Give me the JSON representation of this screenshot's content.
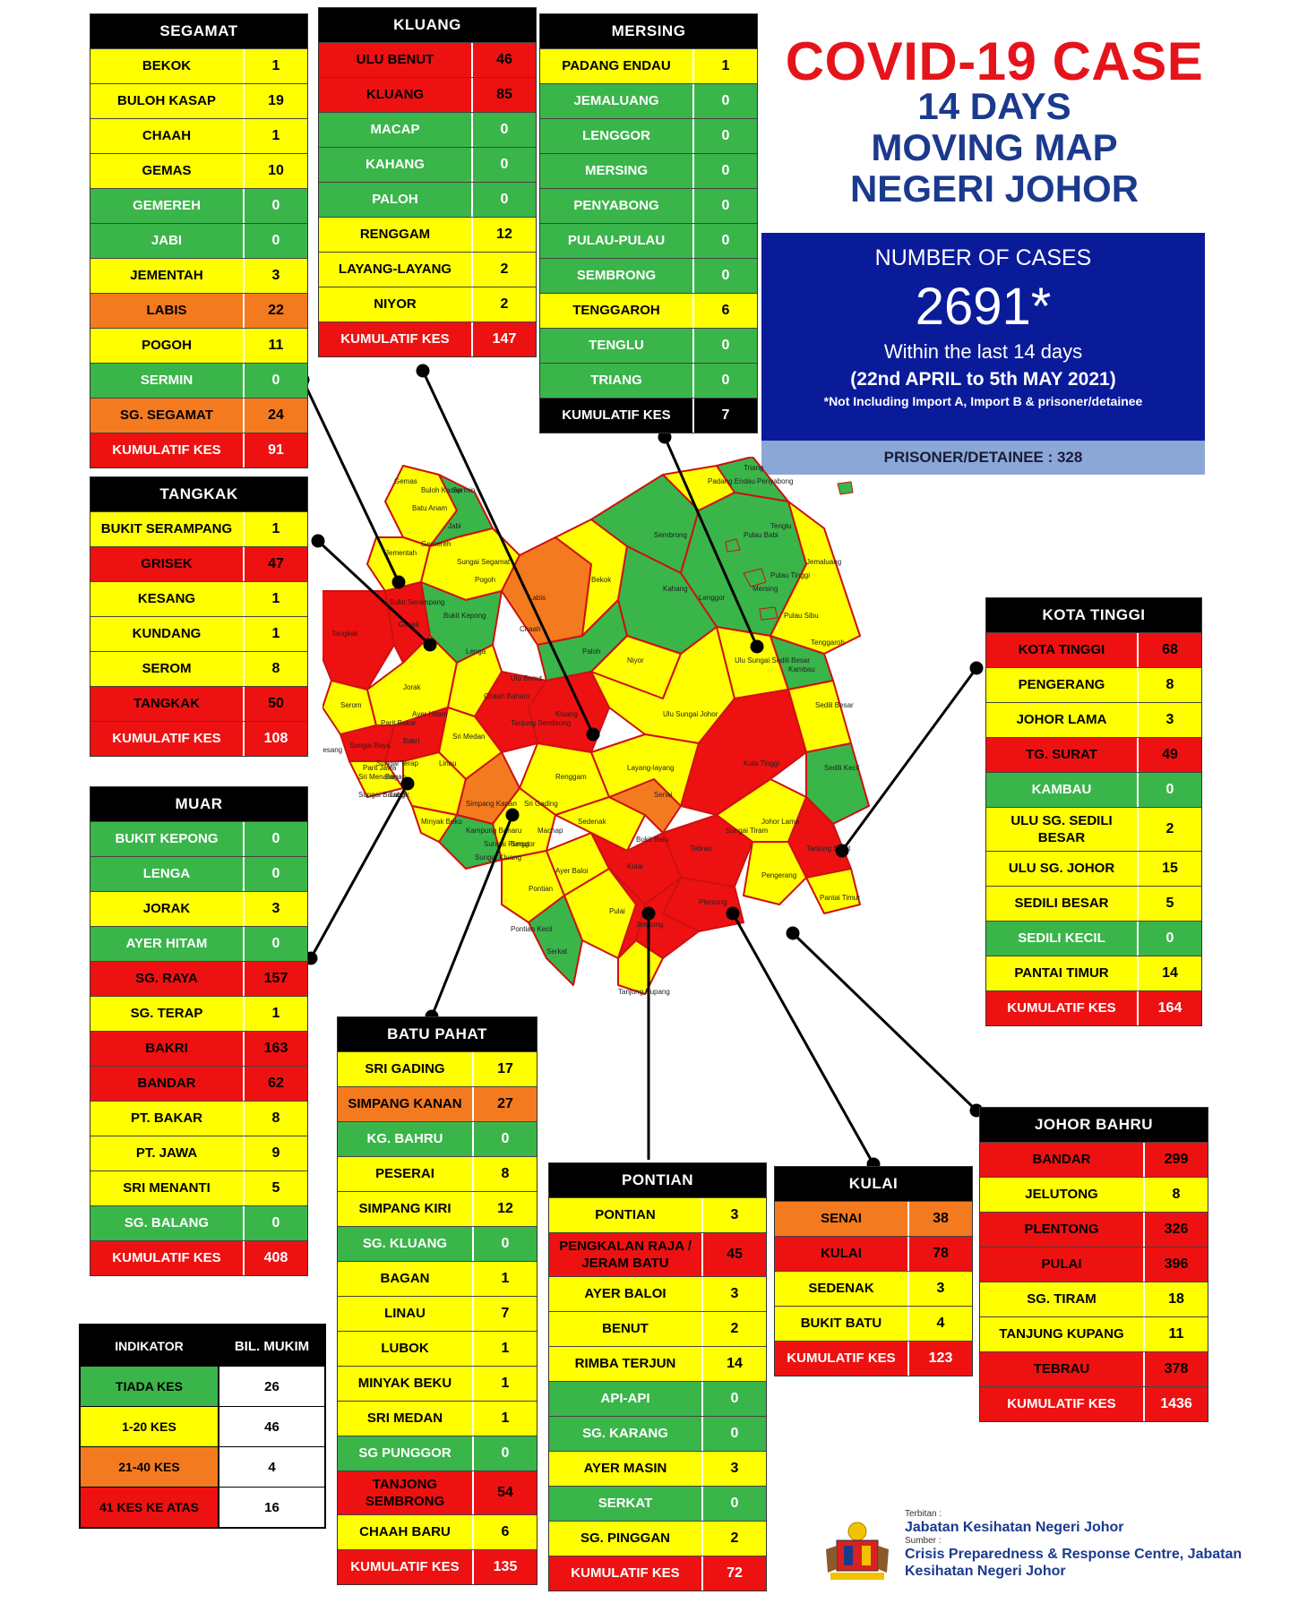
{
  "title": {
    "main": "COVID-19 CASE",
    "sub1": "14 DAYS",
    "sub2": "MOVING MAP",
    "sub3": "NEGERI JOHOR"
  },
  "summary": {
    "label": "NUMBER OF CASES",
    "count": "2691*",
    "within": "Within the last 14 days",
    "range": "(22nd APRIL to 5th MAY 2021)",
    "note": "*Not Including Import A, Import B & prisoner/detainee",
    "prisoner": "PRISONER/DETAINEE : 328"
  },
  "colors": {
    "green": "#3ab54a",
    "yellow": "#ffff00",
    "orange": "#f47a20",
    "red": "#ee1111"
  },
  "districts": {
    "segamat": {
      "name": "SEGAMAT",
      "rows": [
        {
          "name": "BEKOK",
          "value": "1",
          "level": "yellow"
        },
        {
          "name": "BULOH KASAP",
          "value": "19",
          "level": "yellow"
        },
        {
          "name": "CHAAH",
          "value": "1",
          "level": "yellow"
        },
        {
          "name": "GEMAS",
          "value": "10",
          "level": "yellow"
        },
        {
          "name": "GEMEREH",
          "value": "0",
          "level": "green"
        },
        {
          "name": "JABI",
          "value": "0",
          "level": "green"
        },
        {
          "name": "JEMENTAH",
          "value": "3",
          "level": "yellow"
        },
        {
          "name": "LABIS",
          "value": "22",
          "level": "orange"
        },
        {
          "name": "POGOH",
          "value": "11",
          "level": "yellow"
        },
        {
          "name": "SERMIN",
          "value": "0",
          "level": "green"
        },
        {
          "name": "SG. SEGAMAT",
          "value": "24",
          "level": "orange"
        },
        {
          "name": "KUMULATIF KES",
          "value": "91",
          "level": "total"
        }
      ]
    },
    "kluang": {
      "name": "KLUANG",
      "rows": [
        {
          "name": "ULU BENUT",
          "value": "46",
          "level": "red"
        },
        {
          "name": "KLUANG",
          "value": "85",
          "level": "red"
        },
        {
          "name": "MACAP",
          "value": "0",
          "level": "green"
        },
        {
          "name": "KAHANG",
          "value": "0",
          "level": "green"
        },
        {
          "name": "PALOH",
          "value": "0",
          "level": "green"
        },
        {
          "name": "RENGGAM",
          "value": "12",
          "level": "yellow"
        },
        {
          "name": "LAYANG-LAYANG",
          "value": "2",
          "level": "yellow"
        },
        {
          "name": "NIYOR",
          "value": "2",
          "level": "yellow"
        },
        {
          "name": "KUMULATIF KES",
          "value": "147",
          "level": "total"
        }
      ]
    },
    "mersing": {
      "name": "MERSING",
      "rows": [
        {
          "name": "PADANG ENDAU",
          "value": "1",
          "level": "yellow"
        },
        {
          "name": "JEMALUANG",
          "value": "0",
          "level": "green"
        },
        {
          "name": "LENGGOR",
          "value": "0",
          "level": "green"
        },
        {
          "name": "MERSING",
          "value": "0",
          "level": "green"
        },
        {
          "name": "PENYABONG",
          "value": "0",
          "level": "green"
        },
        {
          "name": "PULAU-PULAU",
          "value": "0",
          "level": "green"
        },
        {
          "name": "SEMBRONG",
          "value": "0",
          "level": "green"
        },
        {
          "name": "TENGGAROH",
          "value": "6",
          "level": "yellow"
        },
        {
          "name": "TENGLU",
          "value": "0",
          "level": "green"
        },
        {
          "name": "TRIANG",
          "value": "0",
          "level": "green"
        },
        {
          "name": "KUMULATIF KES",
          "value": "7",
          "level": "totalblk"
        }
      ]
    },
    "tangkak": {
      "name": "TANGKAK",
      "rows": [
        {
          "name": "BUKIT SERAMPANG",
          "value": "1",
          "level": "yellow"
        },
        {
          "name": "GRISEK",
          "value": "47",
          "level": "red"
        },
        {
          "name": "KESANG",
          "value": "1",
          "level": "yellow"
        },
        {
          "name": "KUNDANG",
          "value": "1",
          "level": "yellow"
        },
        {
          "name": "SEROM",
          "value": "8",
          "level": "yellow"
        },
        {
          "name": "TANGKAK",
          "value": "50",
          "level": "red"
        },
        {
          "name": "KUMULATIF KES",
          "value": "108",
          "level": "total"
        }
      ]
    },
    "muar": {
      "name": "MUAR",
      "rows": [
        {
          "name": "BUKIT KEPONG",
          "value": "0",
          "level": "green"
        },
        {
          "name": "LENGA",
          "value": "0",
          "level": "green"
        },
        {
          "name": "JORAK",
          "value": "3",
          "level": "yellow"
        },
        {
          "name": "AYER HITAM",
          "value": "0",
          "level": "green"
        },
        {
          "name": "SG. RAYA",
          "value": "157",
          "level": "red"
        },
        {
          "name": "SG. TERAP",
          "value": "1",
          "level": "yellow"
        },
        {
          "name": "BAKRI",
          "value": "163",
          "level": "red"
        },
        {
          "name": "BANDAR",
          "value": "62",
          "level": "red"
        },
        {
          "name": "PT. BAKAR",
          "value": "8",
          "level": "yellow"
        },
        {
          "name": "PT. JAWA",
          "value": "9",
          "level": "yellow"
        },
        {
          "name": "SRI MENANTI",
          "value": "5",
          "level": "yellow"
        },
        {
          "name": "SG. BALANG",
          "value": "0",
          "level": "green"
        },
        {
          "name": "KUMULATIF KES",
          "value": "408",
          "level": "total"
        }
      ]
    },
    "batu_pahat": {
      "name": "BATU PAHAT",
      "rows": [
        {
          "name": "SRI GADING",
          "value": "17",
          "level": "yellow"
        },
        {
          "name": "SIMPANG KANAN",
          "value": "27",
          "level": "orange"
        },
        {
          "name": "KG. BAHRU",
          "value": "0",
          "level": "green"
        },
        {
          "name": "PESERAI",
          "value": "8",
          "level": "yellow"
        },
        {
          "name": "SIMPANG KIRI",
          "value": "12",
          "level": "yellow"
        },
        {
          "name": "SG. KLUANG",
          "value": "0",
          "level": "green"
        },
        {
          "name": "BAGAN",
          "value": "1",
          "level": "yellow"
        },
        {
          "name": "LINAU",
          "value": "7",
          "level": "yellow"
        },
        {
          "name": "LUBOK",
          "value": "1",
          "level": "yellow"
        },
        {
          "name": "MINYAK BEKU",
          "value": "1",
          "level": "yellow"
        },
        {
          "name": "SRI MEDAN",
          "value": "1",
          "level": "yellow"
        },
        {
          "name": "SG PUNGGOR",
          "value": "0",
          "level": "green"
        },
        {
          "name": "TANJONG SEMBRONG",
          "value": "54",
          "level": "red"
        },
        {
          "name": "CHAAH BARU",
          "value": "6",
          "level": "yellow"
        },
        {
          "name": "KUMULATIF KES",
          "value": "135",
          "level": "total"
        }
      ]
    },
    "pontian": {
      "name": "PONTIAN",
      "rows": [
        {
          "name": "PONTIAN",
          "value": "3",
          "level": "yellow"
        },
        {
          "name": "PENGKALAN RAJA / JERAM BATU",
          "value": "45",
          "level": "red"
        },
        {
          "name": "AYER BALOI",
          "value": "3",
          "level": "yellow"
        },
        {
          "name": "BENUT",
          "value": "2",
          "level": "yellow"
        },
        {
          "name": "RIMBA TERJUN",
          "value": "14",
          "level": "yellow"
        },
        {
          "name": "API-API",
          "value": "0",
          "level": "green"
        },
        {
          "name": "SG. KARANG",
          "value": "0",
          "level": "green"
        },
        {
          "name": "AYER MASIN",
          "value": "3",
          "level": "yellow"
        },
        {
          "name": "SERKAT",
          "value": "0",
          "level": "green"
        },
        {
          "name": "SG. PINGGAN",
          "value": "2",
          "level": "yellow"
        },
        {
          "name": "KUMULATIF KES",
          "value": "72",
          "level": "total"
        }
      ]
    },
    "kulai": {
      "name": "KULAI",
      "rows": [
        {
          "name": "SENAI",
          "value": "38",
          "level": "orange"
        },
        {
          "name": "KULAI",
          "value": "78",
          "level": "red"
        },
        {
          "name": "SEDENAK",
          "value": "3",
          "level": "yellow"
        },
        {
          "name": "BUKIT BATU",
          "value": "4",
          "level": "yellow"
        },
        {
          "name": "KUMULATIF KES",
          "value": "123",
          "level": "total"
        }
      ]
    },
    "kota_tinggi": {
      "name": "KOTA TINGGI",
      "rows": [
        {
          "name": "KOTA TINGGI",
          "value": "68",
          "level": "red"
        },
        {
          "name": "PENGERANG",
          "value": "8",
          "level": "yellow"
        },
        {
          "name": "JOHOR LAMA",
          "value": "3",
          "level": "yellow"
        },
        {
          "name": "TG. SURAT",
          "value": "49",
          "level": "red"
        },
        {
          "name": "KAMBAU",
          "value": "0",
          "level": "green"
        },
        {
          "name": "ULU SG. SEDILI BESAR",
          "value": "2",
          "level": "yellow"
        },
        {
          "name": "ULU SG. JOHOR",
          "value": "15",
          "level": "yellow"
        },
        {
          "name": "SEDILI BESAR",
          "value": "5",
          "level": "yellow"
        },
        {
          "name": "SEDILI KECIL",
          "value": "0",
          "level": "green"
        },
        {
          "name": "PANTAI TIMUR",
          "value": "14",
          "level": "yellow"
        },
        {
          "name": "KUMULATIF KES",
          "value": "164",
          "level": "total"
        }
      ]
    },
    "johor_bahru": {
      "name": "JOHOR BAHRU",
      "rows": [
        {
          "name": "BANDAR",
          "value": "299",
          "level": "red"
        },
        {
          "name": "JELUTONG",
          "value": "8",
          "level": "yellow"
        },
        {
          "name": "PLENTONG",
          "value": "326",
          "level": "red"
        },
        {
          "name": "PULAI",
          "value": "396",
          "level": "red"
        },
        {
          "name": "SG. TIRAM",
          "value": "18",
          "level": "yellow"
        },
        {
          "name": "TANJUNG KUPANG",
          "value": "11",
          "level": "yellow"
        },
        {
          "name": "TEBRAU",
          "value": "378",
          "level": "red"
        },
        {
          "name": "KUMULATIF KES",
          "value": "1436",
          "level": "total"
        }
      ]
    }
  },
  "legend": {
    "head": {
      "name": "INDIKATOR",
      "value": "BIL. MUKIM"
    },
    "rows": [
      {
        "name": "TIADA KES",
        "value": "26",
        "level": "green"
      },
      {
        "name": "1-20 KES",
        "value": "46",
        "level": "yellow"
      },
      {
        "name": "21-40 KES",
        "value": "4",
        "level": "orange"
      },
      {
        "name": "41 KES KE ATAS",
        "value": "16",
        "level": "red"
      }
    ]
  },
  "publisher": {
    "published_label": "Terbitan :",
    "published_by": "Jabatan Kesihatan Negeri Johor",
    "source_label": "Sumber :",
    "source": "Crisis Preparedness & Response Centre, Jabatan Kesihatan Negeri Johor"
  },
  "map_labels": [
    "Gemas",
    "Buloh Kasap",
    "Batu Anam",
    "Sermin",
    "Jabi",
    "Gemereh",
    "Jementah",
    "Sungai Segamat",
    "Labis",
    "Pogoh",
    "Bukit Serampang",
    "Tangkak",
    "Grisek",
    "Bukit Kepong",
    "Lenga",
    "Chaah",
    "Bekok",
    "Sembrong",
    "Padang Endau",
    "Penyabong",
    "Tenglu",
    "Triang",
    "Pulau Babi",
    "Pulau Tinggi",
    "Pulau Sibu",
    "Jemaluang",
    "Mersing",
    "Lenggor",
    "Kahang",
    "Paloh",
    "Niyor",
    "Kluang",
    "Tenggaroh",
    "Kambau",
    "Serom",
    "Kesang",
    "Jorak",
    "Ayer Hitam",
    "Sri Medan",
    "Chaah Baharu",
    "Tanjung Sembrong",
    "Renggam",
    "Layang-layang",
    "Ulu Sungai Johor",
    "Ulu Sungai Sedili Besar",
    "Sedili Besar",
    "Sedili Kecil",
    "Kota Tinggi",
    "Johor Lama",
    "Pengerang",
    "Pantai Timur",
    "Tanjung Surat",
    "Sri Gading",
    "Machap",
    "Ulu Benut",
    "Bukit Batu",
    "Sedenak",
    "Senai",
    "Kulai",
    "Tebrau",
    "Plentong",
    "Sungai Tiram",
    "Linau",
    "Simpang Kanan",
    "Minyak Beku",
    "Kampung Baharu",
    "Sungai Punggor",
    "Sungai Kluang",
    "Benut",
    "Ayer Baloi",
    "Pontian",
    "Tanjung Kupang",
    "Bagan",
    "Lubok",
    "Sungai Balang",
    "Sri Menanti",
    "Sungai Raya",
    "Bakri",
    "Sungai Terap",
    "Parit Jawa",
    "Parit Bakar",
    "Pontian Kecil",
    "Pulai",
    "Jelutong",
    "Serkat"
  ]
}
